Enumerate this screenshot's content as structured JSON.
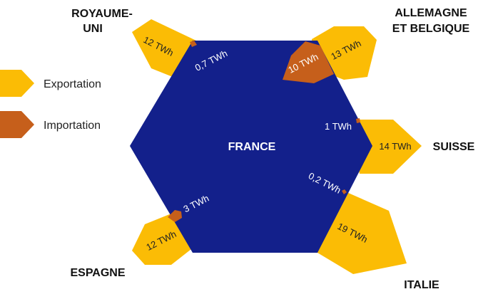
{
  "colors": {
    "france": "#13208b",
    "export": "#fbbc05",
    "import": "#c65f1b",
    "france_text": "#ffffff",
    "value_text_export": "#222222",
    "value_text_import": "#ffffff",
    "value_text_on_france": "#ffffff"
  },
  "center": {
    "label": "FRANCE"
  },
  "legend": {
    "export_label": "Exportation",
    "import_label": "Importation"
  },
  "countries": {
    "uk": {
      "name_line1": "ROYAUME-",
      "name_line2": "UNI",
      "export": "12 TWh",
      "import": "0,7 TWh"
    },
    "de_be": {
      "name_line1": "ALLEMAGNE",
      "name_line2": "ET BELGIQUE",
      "export": "13 TWh",
      "import": "10 TWh"
    },
    "ch": {
      "name": "SUISSE",
      "export": "14 TWh",
      "import": "1 TWh"
    },
    "it": {
      "name": "ITALIE",
      "export": "19 TWh",
      "import": "0,2 TWh"
    },
    "es": {
      "name": "ESPAGNE",
      "export": "12 TWh",
      "import": "3 TWh"
    }
  }
}
